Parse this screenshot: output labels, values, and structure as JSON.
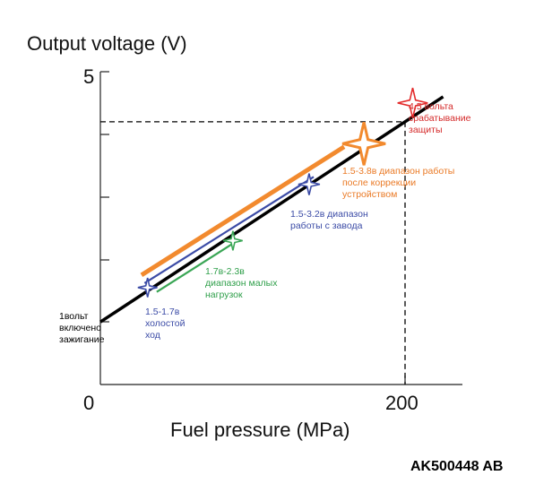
{
  "chart_data": {
    "type": "line",
    "ylabel": "Output voltage (V)",
    "xlabel": "Fuel pressure (MPa)",
    "x_ticks": [
      "0",
      "200"
    ],
    "y_ticks": [
      "5"
    ],
    "xlim": [
      0,
      240
    ],
    "ylim": [
      0,
      5
    ],
    "grid": false,
    "series": [
      {
        "color": "#000000",
        "x": [
          0,
          225
        ],
        "y": [
          1.0,
          4.6
        ]
      },
      {
        "color": "#f28a2e",
        "x": [
          27,
          160
        ],
        "y": [
          1.75,
          3.8
        ]
      },
      {
        "color": "#3b4ba6",
        "x": [
          29,
          140
        ],
        "y": [
          1.62,
          3.32
        ]
      },
      {
        "color": "#3aa655",
        "x": [
          37,
          90
        ],
        "y": [
          1.48,
          2.3
        ]
      }
    ],
    "reference": {
      "color": "#000000",
      "x": 200,
      "y": 4.2
    },
    "markers": [
      {
        "color": "#e32b2b",
        "x": 205,
        "y": 4.5,
        "size": 1.4
      },
      {
        "color": "#f28a2e",
        "x": 173,
        "y": 3.85,
        "size": 2.0
      },
      {
        "color": "#3b4ba6",
        "x": 137,
        "y": 3.2,
        "size": 1.0
      },
      {
        "color": "#3aa655",
        "x": 87,
        "y": 2.3,
        "size": 0.9
      },
      {
        "color": "#3b4ba6",
        "x": 31,
        "y": 1.55,
        "size": 0.9
      }
    ],
    "annotations": [
      {
        "lines": [
          "4.5 вольта",
          "срабатывание",
          "защиты"
        ],
        "color": "#d42a2a"
      },
      {
        "lines": [
          "1.5-3.8в диапазон работы",
          "после коррекции",
          "устройством"
        ],
        "color": "#ea7a26"
      },
      {
        "lines": [
          "1.5-3.2в диапазон",
          "работы с завода"
        ],
        "color": "#3b4ba6"
      },
      {
        "lines": [
          "1.7в-2.3в",
          "диапазон малых",
          "нагрузок"
        ],
        "color": "#2f9f4a"
      },
      {
        "lines": [
          "1.5-1.7в",
          "холостой",
          "ход"
        ],
        "color": "#3b4ba6"
      },
      {
        "lines": [
          "1вольт",
          "включено",
          "зажигание"
        ],
        "color": "#000000"
      }
    ]
  },
  "figure_code": "AK500448 AB"
}
